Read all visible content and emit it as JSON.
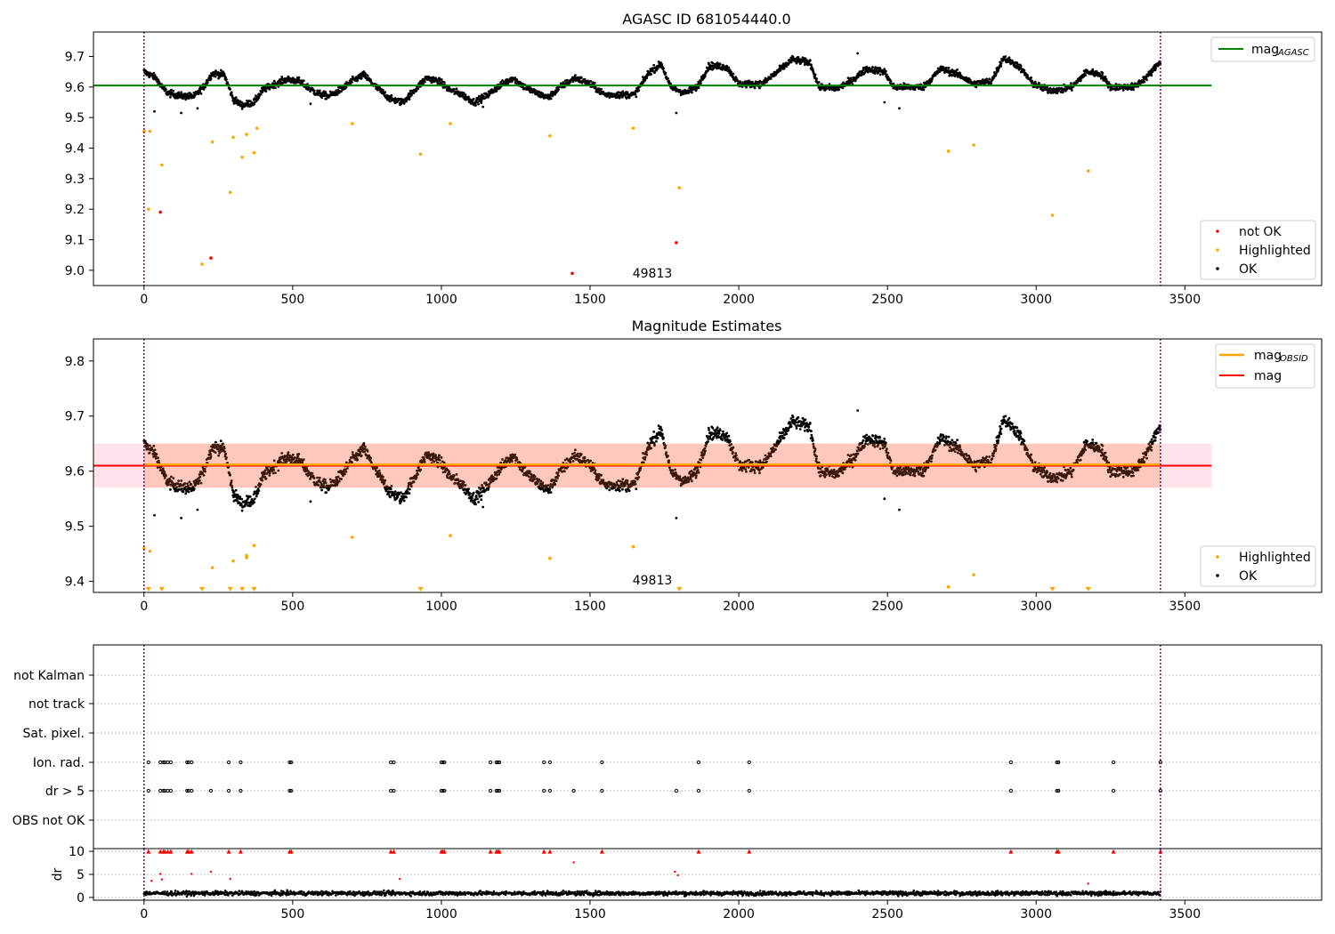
{
  "colors": {
    "ok": "#000000",
    "highlighted": "#ffa500",
    "not_ok": "#ff0000",
    "mag_agasc": "#008000",
    "mag_obsid": "#ffa500",
    "mag": "#ff0000",
    "band_outer": "#ffc0cb",
    "band_inner": "#ffa07a",
    "obs_boundary": "#800080",
    "fig_bg": "#ffffff"
  },
  "chart_data": [
    {
      "id": "agasc",
      "type": "scatter",
      "title": "AGASC ID 681054440.0",
      "xlim": [
        -170,
        3960
      ],
      "ylim": [
        8.95,
        9.78
      ],
      "xticks": [
        "0",
        "500",
        "1000",
        "1500",
        "2000",
        "2500",
        "3000",
        "3500"
      ],
      "yticks": [
        "9.0",
        "9.1",
        "9.2",
        "9.3",
        "9.4",
        "9.5",
        "9.6",
        "9.7"
      ],
      "grid": false,
      "obs_boundaries": [
        0,
        3418
      ],
      "annotation": {
        "text": "49813",
        "x": 1710,
        "y": 8.99
      },
      "lines": [
        {
          "name": "mag",
          "sub": "AGASC",
          "value": 9.605,
          "x_range": [
            -170,
            3590
          ],
          "color_key": "mag_agasc"
        }
      ],
      "legends": [
        {
          "position": "top-right",
          "entries": [
            {
              "kind": "line",
              "color_key": "mag_agasc",
              "label": "mag",
              "sub": "AGASC"
            }
          ]
        },
        {
          "position": "lower-right",
          "entries": [
            {
              "kind": "dot",
              "color_key": "not_ok",
              "label": "not OK"
            },
            {
              "kind": "dot",
              "color_key": "highlighted",
              "label": "Highlighted"
            },
            {
              "kind": "dot",
              "color_key": "ok",
              "label": "OK"
            }
          ]
        }
      ],
      "series": [
        {
          "name": "not OK",
          "color_key": "not_ok",
          "x": [
            55,
            225,
            1440,
            1790
          ],
          "y": [
            9.19,
            9.04,
            8.99,
            9.09
          ]
        },
        {
          "name": "Highlighted",
          "color_key": "highlighted",
          "x": [
            0,
            20,
            15,
            60,
            195,
            230,
            290,
            300,
            330,
            345,
            370,
            380,
            700,
            930,
            1030,
            1365,
            1645,
            1800,
            2705,
            2790,
            3055,
            3175
          ],
          "y": [
            9.455,
            9.455,
            9.2,
            9.345,
            9.02,
            9.42,
            9.255,
            9.435,
            9.37,
            9.445,
            9.385,
            9.465,
            9.48,
            9.38,
            9.48,
            9.44,
            9.465,
            9.27,
            9.39,
            9.41,
            9.18,
            9.325
          ]
        },
        {
          "name": "OK",
          "color_key": "ok",
          "trend": [
            [
              0,
              9.65
            ],
            [
              40,
              9.63
            ],
            [
              60,
              9.6
            ],
            [
              80,
              9.58
            ],
            [
              130,
              9.57
            ],
            [
              170,
              9.57
            ],
            [
              200,
              9.6
            ],
            [
              230,
              9.645
            ],
            [
              270,
              9.64
            ],
            [
              300,
              9.56
            ],
            [
              330,
              9.54
            ],
            [
              370,
              9.55
            ],
            [
              400,
              9.59
            ],
            [
              440,
              9.61
            ],
            [
              480,
              9.625
            ],
            [
              520,
              9.62
            ],
            [
              550,
              9.6
            ],
            [
              580,
              9.58
            ],
            [
              620,
              9.57
            ],
            [
              660,
              9.59
            ],
            [
              700,
              9.62
            ],
            [
              740,
              9.64
            ],
            [
              780,
              9.6
            ],
            [
              830,
              9.56
            ],
            [
              870,
              9.55
            ],
            [
              900,
              9.58
            ],
            [
              950,
              9.63
            ],
            [
              990,
              9.62
            ],
            [
              1030,
              9.59
            ],
            [
              1070,
              9.575
            ],
            [
              1110,
              9.55
            ],
            [
              1150,
              9.57
            ],
            [
              1190,
              9.6
            ],
            [
              1240,
              9.63
            ],
            [
              1280,
              9.6
            ],
            [
              1320,
              9.58
            ],
            [
              1360,
              9.565
            ],
            [
              1400,
              9.6
            ],
            [
              1450,
              9.63
            ],
            [
              1500,
              9.61
            ],
            [
              1550,
              9.575
            ],
            [
              1600,
              9.575
            ],
            [
              1650,
              9.575
            ],
            [
              1700,
              9.65
            ],
            [
              1740,
              9.675
            ],
            [
              1770,
              9.6
            ],
            [
              1820,
              9.58
            ],
            [
              1860,
              9.6
            ],
            [
              1900,
              9.67
            ],
            [
              1960,
              9.665
            ],
            [
              2000,
              9.61
            ],
            [
              2080,
              9.61
            ],
            [
              2130,
              9.65
            ],
            [
              2180,
              9.69
            ],
            [
              2240,
              9.68
            ],
            [
              2270,
              9.6
            ],
            [
              2330,
              9.595
            ],
            [
              2380,
              9.62
            ],
            [
              2430,
              9.66
            ],
            [
              2490,
              9.65
            ],
            [
              2520,
              9.6
            ],
            [
              2620,
              9.6
            ],
            [
              2680,
              9.66
            ],
            [
              2740,
              9.64
            ],
            [
              2790,
              9.61
            ],
            [
              2850,
              9.62
            ],
            [
              2890,
              9.695
            ],
            [
              2940,
              9.67
            ],
            [
              2990,
              9.61
            ],
            [
              3040,
              9.59
            ],
            [
              3080,
              9.59
            ],
            [
              3120,
              9.6
            ],
            [
              3170,
              9.65
            ],
            [
              3220,
              9.64
            ],
            [
              3250,
              9.6
            ],
            [
              3330,
              9.6
            ],
            [
              3380,
              9.64
            ],
            [
              3418,
              9.685
            ]
          ],
          "noise": 0.018,
          "outliers": [
            [
              35,
              9.52
            ],
            [
              125,
              9.515
            ],
            [
              180,
              9.53
            ],
            [
              560,
              9.545
            ],
            [
              1140,
              9.535
            ],
            [
              1790,
              9.515
            ],
            [
              2400,
              9.71
            ],
            [
              2490,
              9.55
            ],
            [
              2540,
              9.53
            ]
          ]
        }
      ]
    },
    {
      "id": "estimates",
      "type": "scatter",
      "title": "Magnitude Estimates",
      "xlim": [
        -170,
        3960
      ],
      "ylim": [
        9.38,
        9.84
      ],
      "xticks": [
        "0",
        "500",
        "1000",
        "1500",
        "2000",
        "2500",
        "3000",
        "3500"
      ],
      "yticks": [
        "9.4",
        "9.5",
        "9.6",
        "9.7",
        "9.8"
      ],
      "grid": false,
      "obs_boundaries": [
        0,
        3418
      ],
      "annotation": {
        "text": "49813",
        "x": 1710,
        "y": 9.395
      },
      "bands": [
        {
          "y": [
            9.57,
            9.65
          ],
          "x_range": [
            -170,
            3590
          ],
          "color_key": "band_outer",
          "opacity": 0.45
        },
        {
          "y": [
            9.57,
            9.65
          ],
          "x_range": [
            0,
            3418
          ],
          "color_key": "band_inner",
          "opacity": 0.4
        }
      ],
      "lines": [
        {
          "name": "mag",
          "value": 9.61,
          "x_range": [
            -170,
            3590
          ],
          "color_key": "mag"
        },
        {
          "name": "mag",
          "sub": "OBSID",
          "value": 9.612,
          "x_range": [
            0,
            3418
          ],
          "color_key": "mag_obsid"
        }
      ],
      "legends": [
        {
          "position": "top-right",
          "entries": [
            {
              "kind": "line",
              "color_key": "mag_obsid",
              "label": "mag",
              "sub": "OBSID"
            },
            {
              "kind": "line",
              "color_key": "mag",
              "label": "mag"
            }
          ]
        },
        {
          "position": "lower-right",
          "entries": [
            {
              "kind": "dot",
              "color_key": "highlighted",
              "label": "Highlighted"
            },
            {
              "kind": "dot",
              "color_key": "ok",
              "label": "OK"
            }
          ]
        }
      ],
      "series": [
        {
          "name": "Highlighted",
          "color_key": "highlighted",
          "x": [
            0,
            20,
            230,
            300,
            345,
            345,
            370,
            700,
            1030,
            1365,
            1645,
            2705,
            2790
          ],
          "y": [
            9.46,
            9.455,
            9.425,
            9.437,
            9.447,
            9.443,
            9.465,
            9.48,
            9.483,
            9.442,
            9.463,
            9.39,
            9.412
          ]
        },
        {
          "name": "Highlighted (clipped below)",
          "color_key": "highlighted",
          "marker": "triangle-down",
          "x": [
            15,
            60,
            195,
            290,
            330,
            370,
            930,
            1800,
            3055,
            3175
          ],
          "y": [
            9.385,
            9.385,
            9.385,
            9.385,
            9.385,
            9.385,
            9.385,
            9.385,
            9.385,
            9.385
          ]
        },
        {
          "name": "OK",
          "color_key": "ok",
          "ref": "agasc"
        }
      ]
    },
    {
      "id": "flags",
      "type": "scatter",
      "xlim": [
        -170,
        3960
      ],
      "xticks": [
        "0",
        "500",
        "1000",
        "1500",
        "2000",
        "2500",
        "3000",
        "3500"
      ],
      "row_labels": [
        "not Kalman",
        "not track",
        "Sat. pixel.",
        "Ion. rad.",
        "dr > 5",
        "OBS not OK"
      ],
      "grid": "rows",
      "obs_boundaries": [
        0,
        3418
      ],
      "flags": {
        "Ion. rad.": [
          15,
          55,
          65,
          70,
          80,
          90,
          145,
          150,
          160,
          285,
          325,
          490,
          495,
          830,
          840,
          1000,
          1005,
          1010,
          1165,
          1185,
          1190,
          1195,
          1345,
          1365,
          1540,
          1865,
          2035,
          2915,
          3070,
          3075,
          3260,
          3418
        ],
        "dr > 5": [
          15,
          55,
          65,
          70,
          80,
          90,
          145,
          150,
          160,
          225,
          285,
          325,
          490,
          495,
          830,
          840,
          1000,
          1005,
          1010,
          1165,
          1185,
          1190,
          1195,
          1345,
          1365,
          1445,
          1540,
          1790,
          1865,
          2035,
          2915,
          3070,
          3075,
          3260,
          3418
        ]
      }
    },
    {
      "id": "dr",
      "type": "scatter",
      "xlim": [
        -170,
        3960
      ],
      "ylim": [
        -0.6,
        10.6
      ],
      "xticks": [
        "0",
        "500",
        "1000",
        "1500",
        "2000",
        "2500",
        "3000",
        "3500"
      ],
      "yticks": [
        "0",
        "5",
        "10"
      ],
      "ylabel": "dr",
      "grid": "y",
      "obs_boundaries": [
        0,
        3418
      ],
      "series": [
        {
          "name": "dr high",
          "color_key": "not_ok",
          "marker": "triangle-up",
          "y_const": 10,
          "x": [
            15,
            55,
            65,
            70,
            80,
            90,
            145,
            150,
            160,
            285,
            325,
            490,
            495,
            830,
            840,
            1000,
            1005,
            1010,
            1165,
            1185,
            1190,
            1195,
            1345,
            1365,
            1540,
            1865,
            2035,
            2915,
            3070,
            3075,
            3260,
            3418
          ]
        },
        {
          "name": "dr mid",
          "color_key": "not_ok",
          "x": [
            25,
            55,
            60,
            160,
            225,
            290,
            860,
            1445,
            1785,
            1795,
            3175
          ],
          "y": [
            3.6,
            5.1,
            3.9,
            5.1,
            5.6,
            4.0,
            4.0,
            7.6,
            5.6,
            4.8,
            3.0
          ]
        },
        {
          "name": "dr",
          "color_key": "ok",
          "range": [
            0,
            3418
          ],
          "base": 0.9,
          "noise": 0.8
        }
      ]
    }
  ]
}
